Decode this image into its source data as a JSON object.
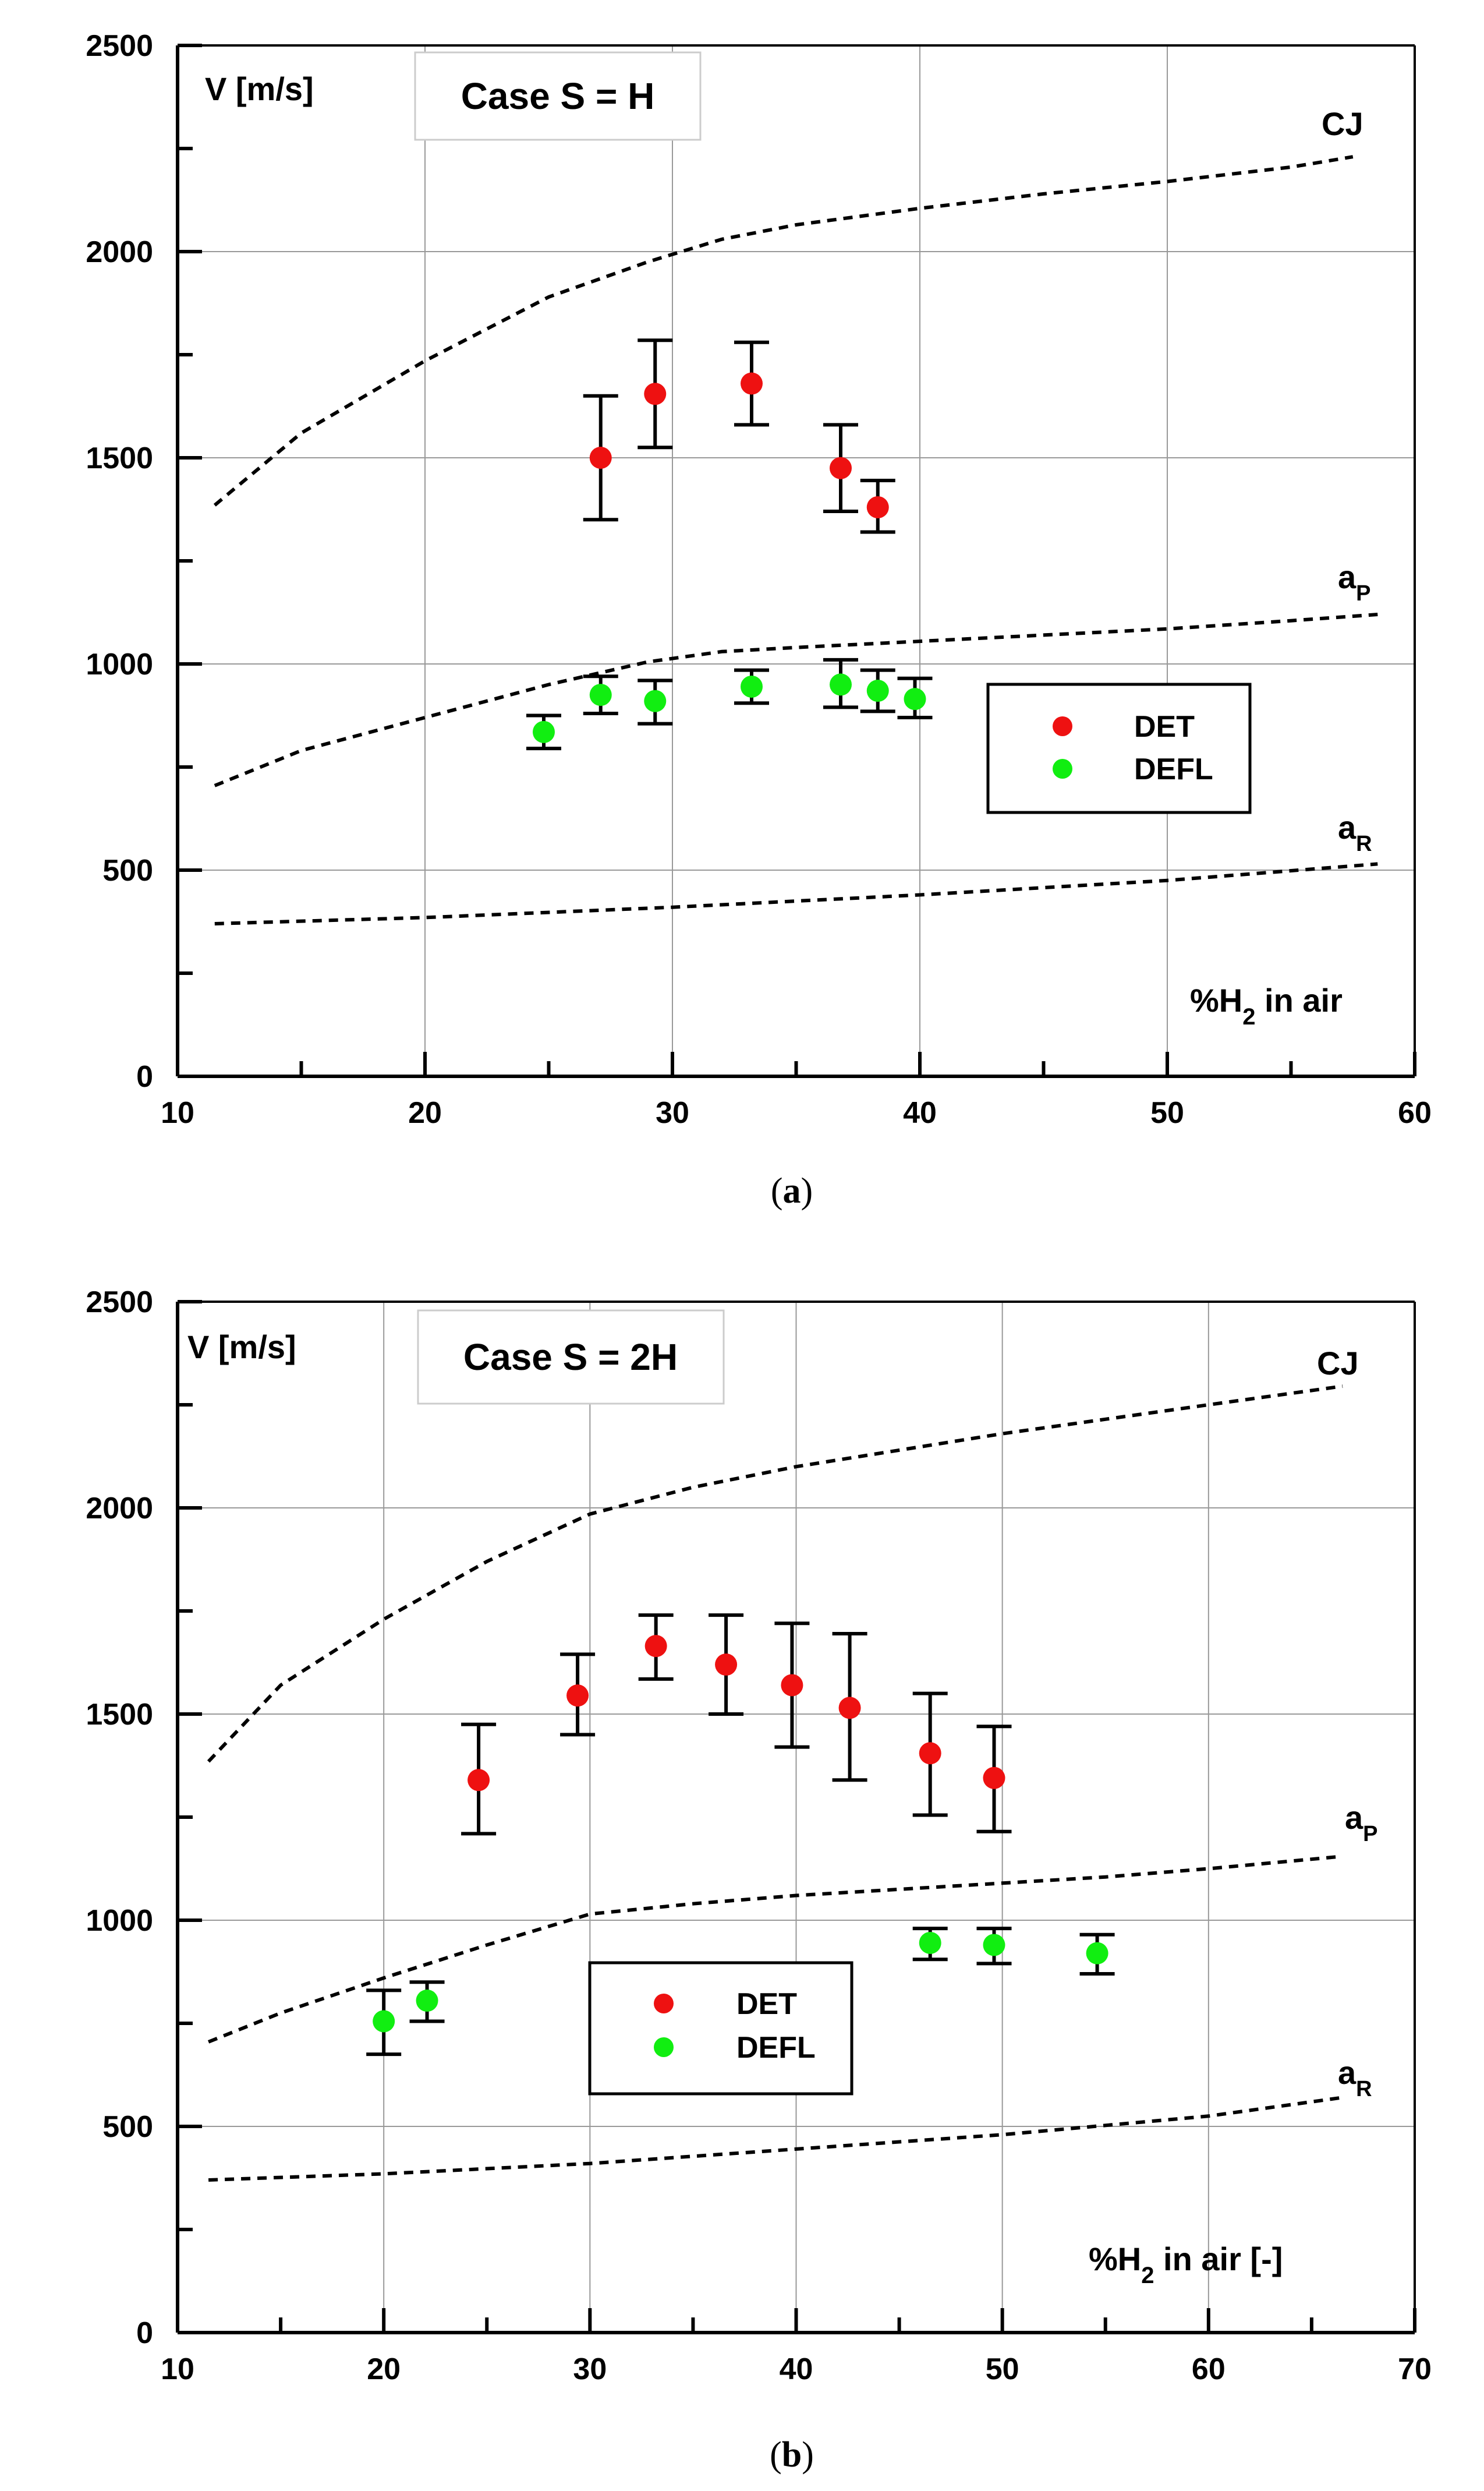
{
  "colors": {
    "det": "#ee1111",
    "defl": "#11ee11",
    "grid": "#999999",
    "axis": "#000000"
  },
  "chart_data": [
    {
      "type": "scatter",
      "panel": "a",
      "caption": "a",
      "title": "Case S = H",
      "ylabel": "V [m/s]",
      "xlabel": "%H",
      "xlabel_sub": "2",
      "xlabel_suffix": " in air",
      "xlim": [
        10,
        60
      ],
      "ylim": [
        0,
        2500
      ],
      "xticks": [
        "10",
        "20",
        "30",
        "40",
        "50",
        "60"
      ],
      "yticks": [
        "0",
        "500",
        "1000",
        "1500",
        "2000",
        "2500"
      ],
      "grid": true,
      "legend": {
        "position": "center-right",
        "entries": [
          "DET",
          "DEFL"
        ]
      },
      "curves": [
        {
          "name": "CJ",
          "label_main": "CJ",
          "label_sub": "",
          "x": [
            11.5,
            15,
            20,
            25,
            29,
            32,
            35,
            40,
            45,
            50,
            55,
            57.5
          ],
          "y": [
            1385,
            1560,
            1735,
            1890,
            1975,
            2030,
            2065,
            2105,
            2140,
            2170,
            2205,
            2230
          ]
        },
        {
          "name": "aP",
          "label_main": "a",
          "label_sub": "P",
          "x": [
            11.5,
            15,
            20,
            25,
            29,
            32,
            35,
            40,
            45,
            50,
            55,
            58.5
          ],
          "y": [
            705,
            790,
            870,
            950,
            1005,
            1030,
            1040,
            1055,
            1070,
            1085,
            1105,
            1120
          ]
        },
        {
          "name": "aR",
          "label_main": "a",
          "label_sub": "R",
          "x": [
            11.5,
            20,
            30,
            40,
            50,
            58.5
          ],
          "y": [
            370,
            385,
            410,
            440,
            475,
            515
          ]
        }
      ],
      "series": [
        {
          "name": "DET",
          "x": [
            27.1,
            29.3,
            33.2,
            36.8,
            38.3
          ],
          "y": [
            1500,
            1655,
            1680,
            1475,
            1380
          ],
          "err_low": [
            1350,
            1525,
            1580,
            1370,
            1320
          ],
          "err_high": [
            1650,
            1785,
            1780,
            1580,
            1445
          ]
        },
        {
          "name": "DEFL",
          "x": [
            24.8,
            27.1,
            29.3,
            33.2,
            36.8,
            38.3,
            39.8
          ],
          "y": [
            835,
            925,
            910,
            945,
            950,
            935,
            915
          ],
          "err_low": [
            795,
            880,
            855,
            905,
            895,
            885,
            870
          ],
          "err_high": [
            875,
            970,
            960,
            985,
            1010,
            985,
            965
          ]
        }
      ]
    },
    {
      "type": "scatter",
      "panel": "b",
      "caption": "b",
      "title": "Case S = 2H",
      "ylabel": "V [m/s]",
      "xlabel": "%H",
      "xlabel_sub": "2",
      "xlabel_suffix": " in air [-]",
      "xlim": [
        10,
        70
      ],
      "ylim": [
        0,
        2500
      ],
      "xticks": [
        "10",
        "20",
        "30",
        "40",
        "50",
        "60",
        "70"
      ],
      "yticks": [
        "0",
        "500",
        "1000",
        "1500",
        "2000",
        "2500"
      ],
      "grid": true,
      "legend": {
        "position": "center",
        "entries": [
          "DET",
          "DEFL"
        ]
      },
      "curves": [
        {
          "name": "CJ",
          "label_main": "CJ",
          "label_sub": "",
          "x": [
            11.5,
            15,
            20,
            25,
            30,
            35,
            40,
            45,
            50,
            55,
            60,
            66.5
          ],
          "y": [
            1385,
            1570,
            1730,
            1870,
            1985,
            2050,
            2100,
            2140,
            2180,
            2215,
            2250,
            2295
          ]
        },
        {
          "name": "aP",
          "label_main": "a",
          "label_sub": "P",
          "x": [
            11.5,
            15,
            20,
            25,
            30,
            35,
            40,
            45,
            50,
            55,
            60,
            66.5
          ],
          "y": [
            705,
            775,
            860,
            940,
            1015,
            1040,
            1060,
            1075,
            1090,
            1105,
            1125,
            1155
          ]
        },
        {
          "name": "aR",
          "label_main": "a",
          "label_sub": "R",
          "x": [
            11.5,
            20,
            30,
            40,
            50,
            60,
            66.5
          ],
          "y": [
            370,
            385,
            410,
            445,
            480,
            525,
            570
          ]
        }
      ],
      "series": [
        {
          "name": "DET",
          "x": [
            24.6,
            29.4,
            33.2,
            36.6,
            39.8,
            42.6,
            46.5,
            49.6
          ],
          "y": [
            1340,
            1545,
            1665,
            1620,
            1570,
            1515,
            1405,
            1345
          ],
          "err_low": [
            1210,
            1450,
            1585,
            1500,
            1420,
            1340,
            1255,
            1215
          ],
          "err_high": [
            1475,
            1645,
            1740,
            1740,
            1720,
            1695,
            1550,
            1470
          ]
        },
        {
          "name": "DEFL",
          "x": [
            20.0,
            22.1,
            46.5,
            49.6,
            54.6
          ],
          "y": [
            755,
            805,
            945,
            940,
            920
          ],
          "err_low": [
            675,
            755,
            905,
            895,
            870
          ],
          "err_high": [
            830,
            850,
            980,
            980,
            965
          ]
        }
      ]
    }
  ]
}
